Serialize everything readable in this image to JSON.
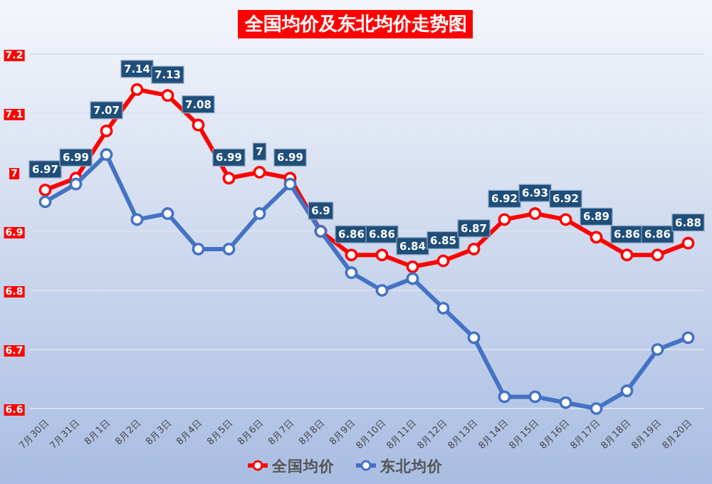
{
  "chart_data": {
    "type": "line",
    "title": "全国均价及东北均价走势图",
    "categories": [
      "7月30日",
      "7月31日",
      "8月1日",
      "8月2日",
      "8月3日",
      "8月4日",
      "8月5日",
      "8月6日",
      "8月7日",
      "8月8日",
      "8月9日",
      "8月10日",
      "8月11日",
      "8月12日",
      "8月13日",
      "8月14日",
      "8月15日",
      "8月16日",
      "8月17日",
      "8月18日",
      "8月19日",
      "8月20日"
    ],
    "series": [
      {
        "name": "全国均价",
        "color": "#ff0000",
        "values": [
          6.97,
          6.99,
          7.07,
          7.14,
          7.13,
          7.08,
          6.99,
          7,
          6.99,
          6.9,
          6.86,
          6.86,
          6.84,
          6.85,
          6.87,
          6.92,
          6.93,
          6.92,
          6.89,
          6.86,
          6.86,
          6.88
        ],
        "value_labels": [
          "6.97",
          "6.99",
          "7.07",
          "7.14",
          "7.13",
          "7.08",
          "6.99",
          "7",
          "6.99",
          "6.9",
          "6.86",
          "6.86",
          "6.84",
          "6.85",
          "6.87",
          "6.92",
          "6.93",
          "6.92",
          "6.89",
          "6.86",
          "6.86",
          "6.88"
        ]
      },
      {
        "name": "东北均价",
        "color": "#4472c4",
        "values": [
          6.95,
          6.98,
          7.03,
          6.92,
          6.93,
          6.87,
          6.87,
          6.93,
          6.98,
          6.9,
          6.83,
          6.8,
          6.82,
          6.77,
          6.72,
          6.62,
          6.62,
          6.61,
          6.6,
          6.63,
          6.7,
          6.72
        ]
      }
    ],
    "ylim": [
      6.6,
      7.2
    ],
    "yticks": [
      6.6,
      6.7,
      6.8,
      6.9,
      7,
      7.1,
      7.2
    ],
    "grid": "y",
    "legend": "bottom",
    "marker": "circle",
    "line_style": "solid"
  }
}
